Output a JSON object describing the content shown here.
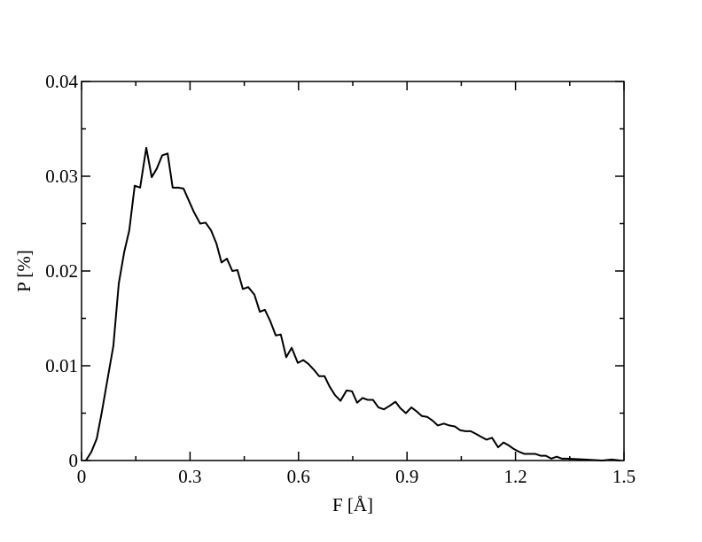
{
  "chart_data": {
    "type": "line",
    "xlabel": "F [Å]",
    "ylabel": "P [%]",
    "xlim": [
      0,
      1.5
    ],
    "ylim": [
      0,
      0.04
    ],
    "xticks": [
      0,
      0.3,
      0.6,
      0.9,
      1.2,
      1.5
    ],
    "yticks": [
      0,
      0.01,
      0.02,
      0.03,
      0.04
    ],
    "xminorticks": [
      0.15,
      0.45,
      0.75,
      1.05,
      1.35
    ],
    "yminorticks": [
      0.005,
      0.015,
      0.025,
      0.035
    ],
    "series": [
      {
        "color": "#000000",
        "x": [
          0.012,
          0.027,
          0.042,
          0.056,
          0.071,
          0.088,
          0.103,
          0.118,
          0.132,
          0.147,
          0.162,
          0.179,
          0.194,
          0.208,
          0.223,
          0.238,
          0.252,
          0.267,
          0.282,
          0.297,
          0.311,
          0.328,
          0.343,
          0.358,
          0.373,
          0.387,
          0.402,
          0.417,
          0.431,
          0.446,
          0.461,
          0.478,
          0.493,
          0.507,
          0.522,
          0.537,
          0.551,
          0.566,
          0.581,
          0.598,
          0.613,
          0.627,
          0.642,
          0.657,
          0.672,
          0.686,
          0.701,
          0.716,
          0.733,
          0.748,
          0.762,
          0.777,
          0.792,
          0.806,
          0.821,
          0.836,
          0.853,
          0.868,
          0.882,
          0.897,
          0.912,
          0.926,
          0.941,
          0.956,
          0.971,
          0.985,
          1.002,
          1.017,
          1.032,
          1.047,
          1.061,
          1.076,
          1.091,
          1.105,
          1.12,
          1.135,
          1.152,
          1.167,
          1.181,
          1.196,
          1.211,
          1.225,
          1.24,
          1.255,
          1.27,
          1.284,
          1.299,
          1.314,
          1.328,
          1.343,
          1.392,
          1.44,
          1.466,
          1.49
        ],
        "values": [
          0,
          0.0009,
          0.0023,
          0.0051,
          0.0084,
          0.0121,
          0.0187,
          0.022,
          0.0243,
          0.029,
          0.0288,
          0.033,
          0.0299,
          0.0308,
          0.0322,
          0.0324,
          0.0288,
          0.0288,
          0.0287,
          0.0274,
          0.0262,
          0.025,
          0.0251,
          0.0243,
          0.0229,
          0.0209,
          0.0213,
          0.02,
          0.0201,
          0.0181,
          0.0183,
          0.0175,
          0.0157,
          0.0159,
          0.0147,
          0.0132,
          0.0133,
          0.0109,
          0.0119,
          0.0103,
          0.0106,
          0.0102,
          0.0096,
          0.0089,
          0.0089,
          0.0078,
          0.0069,
          0.0063,
          0.0074,
          0.0073,
          0.0061,
          0.0066,
          0.0064,
          0.0064,
          0.0056,
          0.0054,
          0.0058,
          0.0062,
          0.0055,
          0.005,
          0.0056,
          0.0052,
          0.0047,
          0.0046,
          0.0042,
          0.0037,
          0.0039,
          0.0037,
          0.0036,
          0.0032,
          0.0031,
          0.0031,
          0.0028,
          0.0025,
          0.0022,
          0.0024,
          0.0014,
          0.0019,
          0.0016,
          0.0012,
          0.0009,
          0.0007,
          0.0007,
          0.0007,
          0.0005,
          0.0005,
          0.0002,
          0.0004,
          0.0002,
          0.0002,
          0.0001,
          0,
          0.0001,
          0
        ]
      }
    ]
  }
}
